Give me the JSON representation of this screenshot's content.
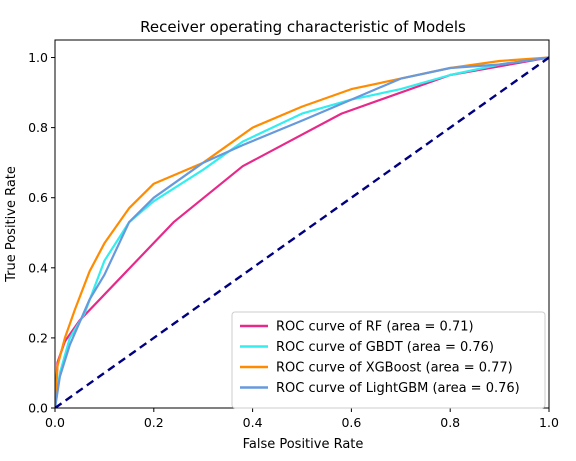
{
  "chart_data": {
    "type": "line",
    "title": "Receiver operating characteristic of Models",
    "xlabel": "False Positive Rate",
    "ylabel": "True Positive Rate",
    "xlim": [
      0.0,
      1.0
    ],
    "ylim": [
      0.0,
      1.05
    ],
    "xticks": [
      "0.0",
      "0.2",
      "0.4",
      "0.6",
      "0.8",
      "1.0"
    ],
    "yticks": [
      "0.0",
      "0.2",
      "0.4",
      "0.6",
      "0.8",
      "1.0"
    ],
    "grid": false,
    "legend_position": "lower right",
    "series": [
      {
        "name": "ROC curve of RF (area = 0.71)",
        "color": "#e7298a",
        "points": [
          [
            0.0,
            0.0
          ],
          [
            0.005,
            0.13
          ],
          [
            0.02,
            0.19
          ],
          [
            0.05,
            0.25
          ],
          [
            0.24,
            0.53
          ],
          [
            0.38,
            0.69
          ],
          [
            0.58,
            0.84
          ],
          [
            0.8,
            0.95
          ],
          [
            1.0,
            1.0
          ]
        ]
      },
      {
        "name": "ROC curve of GBDT (area = 0.76)",
        "color": "#33eeee",
        "points": [
          [
            0.0,
            0.0
          ],
          [
            0.01,
            0.1
          ],
          [
            0.03,
            0.2
          ],
          [
            0.06,
            0.27
          ],
          [
            0.1,
            0.42
          ],
          [
            0.15,
            0.53
          ],
          [
            0.2,
            0.59
          ],
          [
            0.3,
            0.68
          ],
          [
            0.38,
            0.76
          ],
          [
            0.5,
            0.84
          ],
          [
            0.6,
            0.88
          ],
          [
            0.7,
            0.91
          ],
          [
            0.8,
            0.95
          ],
          [
            0.9,
            0.98
          ],
          [
            1.0,
            1.0
          ]
        ]
      },
      {
        "name": "ROC curve of XGBoost (area = 0.77)",
        "color": "#ff8c00",
        "points": [
          [
            0.0,
            0.0
          ],
          [
            0.005,
            0.12
          ],
          [
            0.02,
            0.2
          ],
          [
            0.04,
            0.28
          ],
          [
            0.07,
            0.39
          ],
          [
            0.1,
            0.47
          ],
          [
            0.15,
            0.57
          ],
          [
            0.2,
            0.64
          ],
          [
            0.3,
            0.7
          ],
          [
            0.4,
            0.8
          ],
          [
            0.5,
            0.86
          ],
          [
            0.6,
            0.91
          ],
          [
            0.7,
            0.94
          ],
          [
            0.8,
            0.97
          ],
          [
            0.9,
            0.99
          ],
          [
            1.0,
            1.0
          ]
        ]
      },
      {
        "name": "ROC curve of LightGBM (area = 0.76)",
        "color": "#6699dd",
        "points": [
          [
            0.0,
            0.0
          ],
          [
            0.01,
            0.09
          ],
          [
            0.03,
            0.18
          ],
          [
            0.07,
            0.31
          ],
          [
            0.1,
            0.38
          ],
          [
            0.15,
            0.53
          ],
          [
            0.2,
            0.6
          ],
          [
            0.3,
            0.7
          ],
          [
            0.38,
            0.75
          ],
          [
            0.5,
            0.82
          ],
          [
            0.6,
            0.88
          ],
          [
            0.7,
            0.94
          ],
          [
            0.8,
            0.97
          ],
          [
            0.9,
            0.98
          ],
          [
            1.0,
            1.0
          ]
        ]
      },
      {
        "name": "",
        "color": "#000080",
        "dashed": true,
        "points": [
          [
            0.0,
            0.0
          ],
          [
            1.0,
            1.0
          ]
        ]
      }
    ]
  }
}
